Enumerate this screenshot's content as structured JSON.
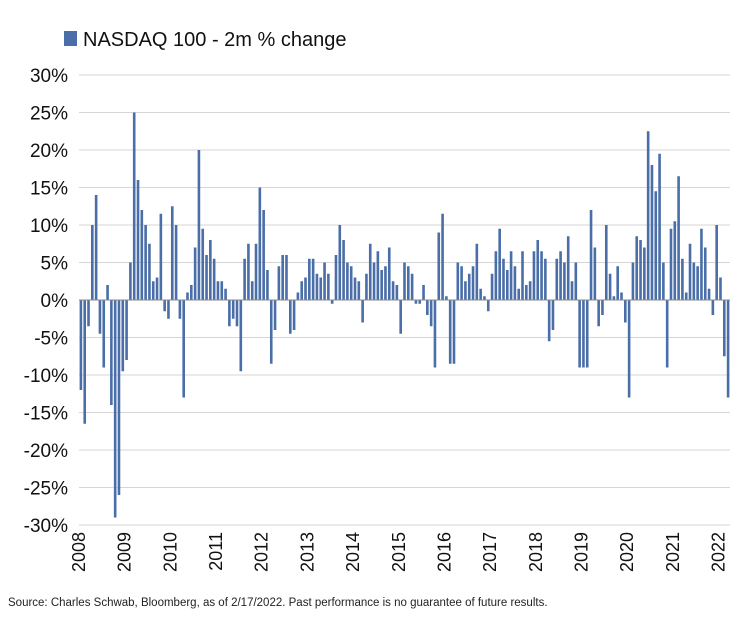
{
  "chart_data": {
    "type": "bar",
    "legend": {
      "label": "NASDAQ 100 - 2m % change",
      "position": "top-left"
    },
    "y_ticks": [
      "30%",
      "25%",
      "20%",
      "15%",
      "10%",
      "5%",
      "0%",
      "-5%",
      "-10%",
      "-15%",
      "-20%",
      "-25%",
      "-30%"
    ],
    "ylim": [
      -30,
      30
    ],
    "x_ticks": [
      "2008",
      "2009",
      "2010",
      "2011",
      "2012",
      "2013",
      "2014",
      "2015",
      "2016",
      "2017",
      "2018",
      "2019",
      "2020",
      "2021",
      "2022"
    ],
    "grid": true,
    "bar_color": "#4a6ea8",
    "series": [
      {
        "start": "2008-01",
        "frequency": "monthly",
        "values": [
          -12,
          -16.5,
          -3.5,
          10,
          14,
          -4.5,
          -9,
          2,
          -14,
          -29,
          -26,
          -9.5,
          -8,
          5,
          25,
          16,
          12,
          10,
          7.5,
          2.5,
          3,
          11.5,
          -1.5,
          -2.5,
          12.5,
          10,
          -2.5,
          -13,
          1,
          2,
          7,
          20,
          9.5,
          6,
          8,
          5.5,
          2.5,
          2.5,
          1.5,
          -3.5,
          -2.5,
          -3.5,
          -9.5,
          5.5,
          7.5,
          2.5,
          7.5,
          15,
          12,
          4,
          -8.5,
          -4,
          4.5,
          6,
          6,
          -4.5,
          -4,
          1,
          2.5,
          3,
          5.5,
          5.5,
          3.5,
          3,
          5,
          3.5,
          -0.5,
          6,
          10,
          8,
          5,
          4.5,
          3,
          2.5,
          -3,
          3.5,
          7.5,
          5,
          6.5,
          4,
          4.5,
          7,
          2.5,
          2,
          -4.5,
          5,
          4.5,
          3.5,
          -0.5,
          -0.5,
          2,
          -2,
          -3.5,
          -9,
          9,
          11.5,
          0.5,
          -8.5,
          -8.5,
          5,
          4.5,
          2.5,
          3.5,
          4.5,
          7.5,
          1.5,
          0.5,
          -1.5,
          3.5,
          6.5,
          9.5,
          5.5,
          4,
          6.5,
          4.5,
          1.5,
          6.5,
          2,
          2.5,
          6.5,
          8,
          6.5,
          5.5,
          -5.5,
          -4,
          5.5,
          6.5,
          5,
          8.5,
          2.5,
          5,
          -9,
          -9,
          -9,
          12,
          7,
          -3.5,
          -2,
          10,
          3.5,
          0.5,
          4.5,
          1,
          -3,
          -13,
          5,
          8.5,
          8,
          7,
          22.5,
          18,
          14.5,
          19.5,
          5,
          -9,
          9.5,
          10.5,
          16.5,
          5.5,
          1,
          7.5,
          5,
          4.5,
          9.5,
          7,
          1.5,
          -2,
          10,
          3,
          -7.5,
          -13
        ]
      }
    ]
  },
  "source": "Source: Charles Schwab, Bloomberg, as of 2/17/2022. Past performance is no guarantee of future results."
}
